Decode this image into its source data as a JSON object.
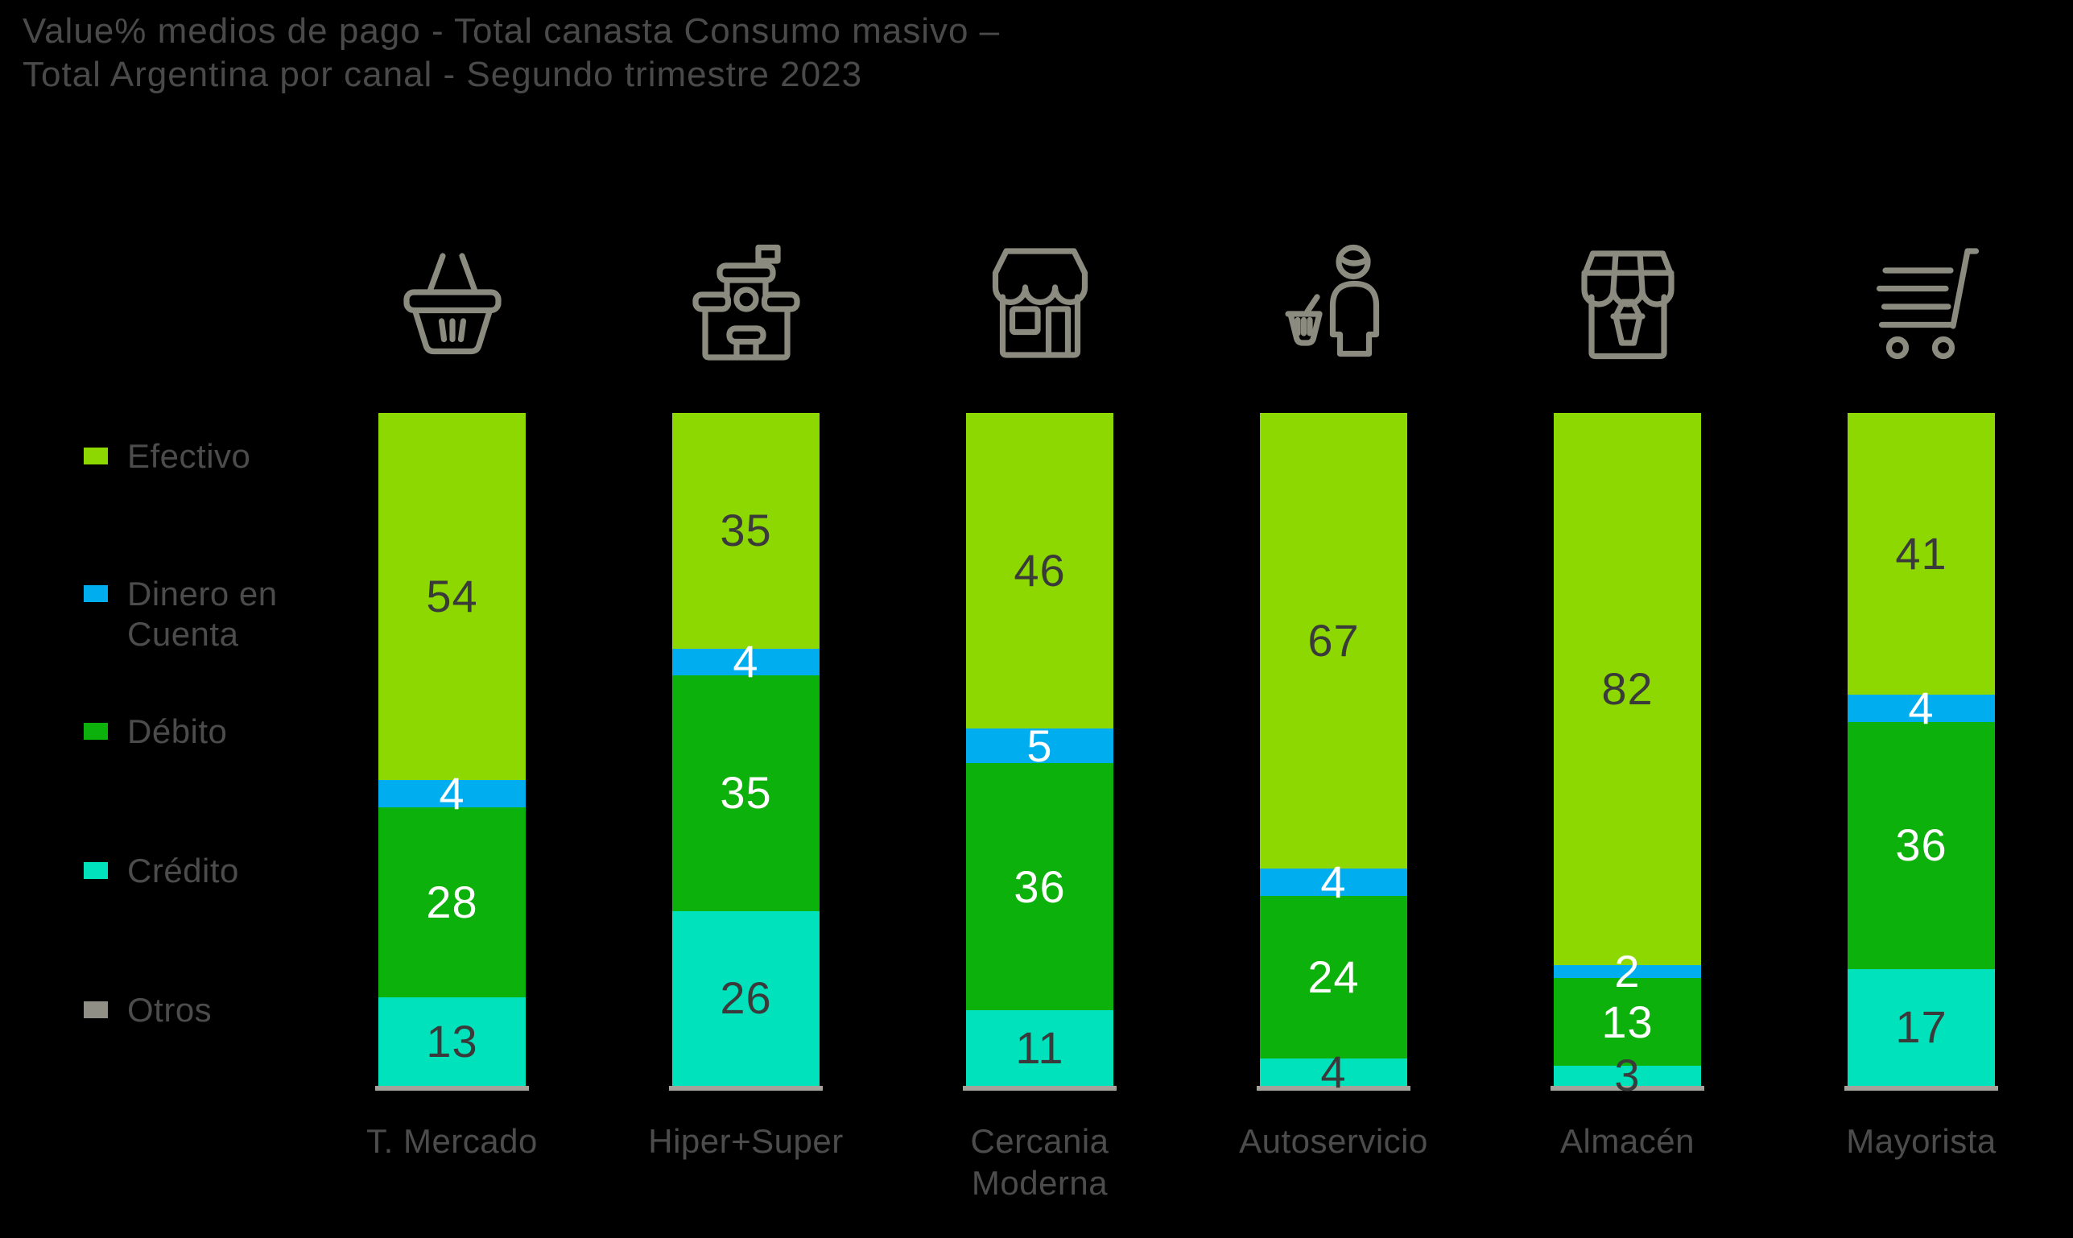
{
  "title": "Value% medios de pago - Total canasta Consumo masivo –\nTotal Argentina por canal - Segundo trimestre 2023",
  "colors": {
    "background": "#000000",
    "title_text": "#4a4a4a",
    "axis_text": "#4c4c4c",
    "icon_stroke": "#8b8b80",
    "efectivo": "#8cd800",
    "dinero_en_cuenta": "#00aeef",
    "debito": "#0db10b",
    "credito": "#00e2bc",
    "otros": "#a3a39b",
    "dark_value_label": "#3a3a3a",
    "light_value_label": "#ffffff"
  },
  "legend": {
    "items": [
      {
        "label": "Efectivo",
        "color": "#8cd800"
      },
      {
        "label": "Dinero en\nCuenta",
        "color": "#00aeef"
      },
      {
        "label": "Débito",
        "color": "#0db10b"
      },
      {
        "label": "Crédito",
        "color": "#00e2bc"
      },
      {
        "label": "Otros",
        "color": "#8f8f85"
      }
    ]
  },
  "chart_data": {
    "type": "bar",
    "subtype": "stacked-vertical-100pct",
    "unit": "%",
    "title": "Value% medios de pago - Total canasta Consumo masivo – Total Argentina por canal - Segundo trimestre 2023",
    "legend_position": "left",
    "grid": false,
    "categories": [
      {
        "label": "T. Mercado",
        "icon": "basket-icon"
      },
      {
        "label": "Hiper+Super",
        "icon": "hypermarket-icon"
      },
      {
        "label": "Cercania\nModerna",
        "icon": "storefront-icon"
      },
      {
        "label": "Autoservicio",
        "icon": "shopper-icon"
      },
      {
        "label": "Almacén",
        "icon": "almacen-store-icon"
      },
      {
        "label": "Mayorista",
        "icon": "cart-icon"
      }
    ],
    "series": [
      {
        "name": "Efectivo",
        "color": "#8cd800",
        "label_color": "#3a3a3a",
        "labeled": true,
        "values": [
          54,
          35,
          46,
          67,
          82,
          41
        ]
      },
      {
        "name": "Dinero en Cuenta",
        "color": "#00aeef",
        "label_color": "#ffffff",
        "labeled": true,
        "values": [
          4,
          4,
          5,
          4,
          2,
          4
        ]
      },
      {
        "name": "Débito",
        "color": "#0db10b",
        "label_color": "#ffffff",
        "labeled": true,
        "values": [
          28,
          35,
          36,
          24,
          13,
          36
        ]
      },
      {
        "name": "Crédito",
        "color": "#00e2bc",
        "label_color": "#3a3a3a",
        "labeled": true,
        "values": [
          13,
          26,
          11,
          4,
          3,
          17
        ]
      },
      {
        "name": "Otros",
        "color": "#a3a39b",
        "label_color": null,
        "labeled": false,
        "values": [
          null,
          null,
          null,
          null,
          null,
          null
        ]
      }
    ]
  }
}
